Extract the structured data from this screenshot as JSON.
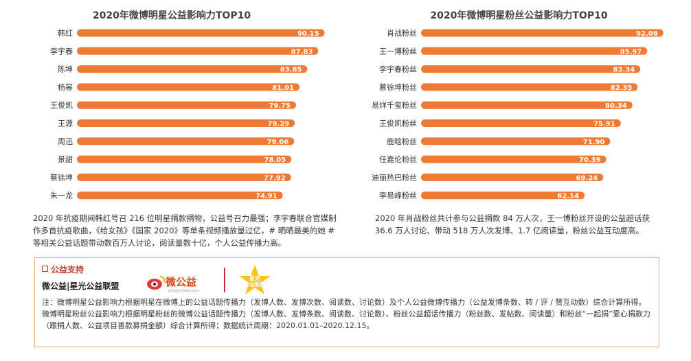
{
  "chart_data": [
    {
      "type": "bar",
      "orientation": "horizontal",
      "title": "2020年微博明星公益影响力TOP10",
      "categories": [
        "韩红",
        "李宇春",
        "陈坤",
        "杨幂",
        "王俊凯",
        "王源",
        "周迅",
        "景甜",
        "蔡徐坤",
        "朱一龙"
      ],
      "values": [
        90.15,
        87.83,
        83.85,
        81.01,
        79.75,
        79.29,
        79.06,
        78.05,
        77.92,
        74.91
      ],
      "value_labels": [
        "90.15",
        "87.83",
        "83.85",
        "81.01",
        "79.75",
        "79.29",
        "79.06",
        "78.05",
        "77.92",
        "74.91"
      ],
      "xlim": [
        0,
        100
      ],
      "color": "#ee7a34"
    },
    {
      "type": "bar",
      "orientation": "horizontal",
      "title": "2020年微博明星粉丝公益影响力TOP10",
      "categories": [
        "肖战粉丝",
        "王一博粉丝",
        "李宇春粉丝",
        "蔡徐坤粉丝",
        "易烊千玺粉丝",
        "王俊凯粉丝",
        "鹿晗粉丝",
        "任嘉伦粉丝",
        "迪丽热巴粉丝",
        "李易峰粉丝"
      ],
      "values": [
        92.08,
        85.97,
        83.34,
        82.35,
        80.34,
        75.91,
        71.9,
        70.39,
        69.24,
        62.14
      ],
      "value_labels": [
        "92.08",
        "85.97",
        "83.34",
        "82.35",
        "80.34",
        "75.91",
        "71.90",
        "70.39",
        "69.24",
        "62.14"
      ],
      "xlim": [
        0,
        100
      ],
      "color": "#ee7a34"
    }
  ],
  "left_desc": "2020 年抗疫期间韩红号召 216 位明星捐款捐物，公益号召力最强；李宇春联合官媒制作多首抗疫歌曲，《给女孩》《国家 2020》等单条视频播放量过亿，# 晒晒最美的她 # 等相关公益话题带动数百万人讨论，阅读量数十亿，个人公益传播力高。",
  "right_desc": "2020 年肖战粉丝共计参与公益捐款 84 万人次，王一博粉丝开设的公益超话获 36.6 万人讨论、带动 518 万人次发博、1.7 亿阅读量，粉丝公益互动度高。",
  "support": {
    "title": "公益支持",
    "name": "微公益|星光公益联盟",
    "logo1_text": "微公益",
    "logo1_url": "gongyi.weibo.com",
    "logo2_text_1": "星光",
    "logo2_text_2": "公益联盟",
    "note1": "注：微博明星公益影响力根据明星在微博上的公益话题传播力（发博人数、发博次数、阅读数、讨论数）及个人公益微博传播力（公益发博条数、转 / 评 / 赞互动数）综合计算所得。",
    "note2": "微博明星粉丝公益影响力根据明星粉丝的微博公益话题传播力（发博人数、发博条数、阅读数、讨论数）、粉丝公益超话传播力（粉丝数、发帖数、阅读量）和粉丝“一起捐”爱心捐款力（跟捐人数、公益项目善款募捐金额）综合计算所得；数据统计周期：2020.01.01–2020.12.15。"
  }
}
